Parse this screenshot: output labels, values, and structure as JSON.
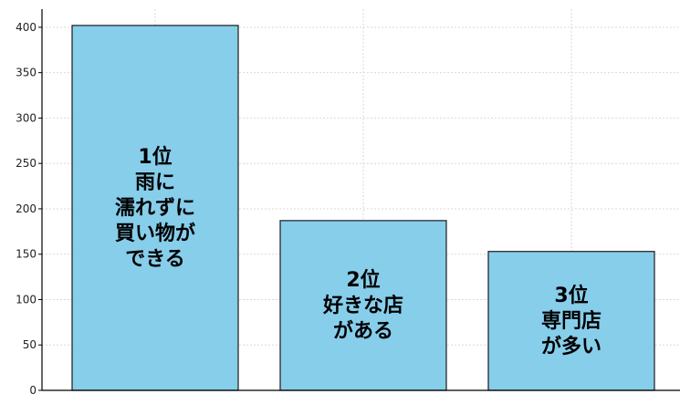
{
  "chart_data": {
    "type": "bar",
    "categories": [
      "1位",
      "2位",
      "3位"
    ],
    "values": [
      402,
      187,
      153
    ],
    "bar_labels": [
      [
        "1位",
        "雨に",
        "濡れずに",
        "買い物が",
        "できる"
      ],
      [
        "2位",
        "好きな店",
        "がある"
      ],
      [
        "3位",
        "専門店",
        "が多い"
      ]
    ],
    "yticks": [
      0,
      50,
      100,
      150,
      200,
      250,
      300,
      350,
      400
    ],
    "ylim": [
      0,
      420
    ],
    "grid": true,
    "colors": {
      "bar": "#87ceeb",
      "edge": "#1a1a1a"
    }
  }
}
